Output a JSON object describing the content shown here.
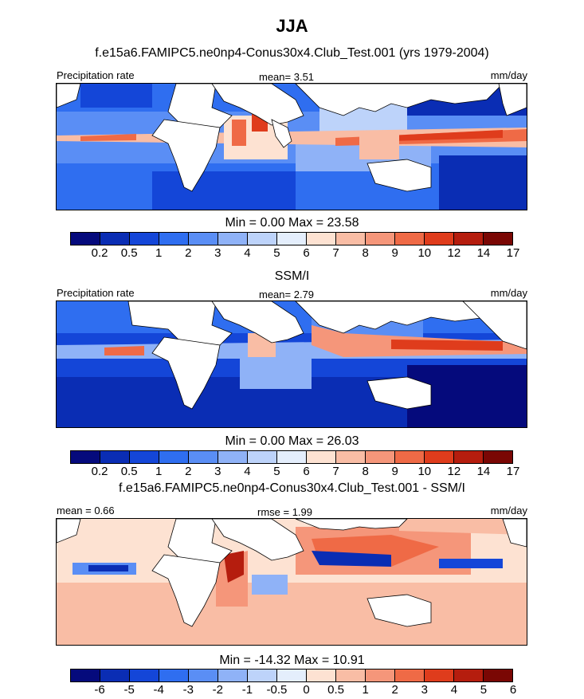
{
  "title": "JJA",
  "panels": [
    {
      "id": "model",
      "subtitle": "f.e15a6.FAMIPC5.ne0np4-Conus30x4.Club_Test.001 (yrs 1979-2004)",
      "left_label": "Precipitation rate",
      "center_label": "mean=   3.51",
      "right_label": "mm/day",
      "minmax": "Min =   0.00 Max =  23.58",
      "colorbar_labels": [
        "0.2",
        "0.5",
        "1",
        "2",
        "3",
        "4",
        "5",
        "6",
        "7",
        "8",
        "9",
        "10",
        "12",
        "14",
        "17"
      ]
    },
    {
      "id": "obs",
      "subtitle": "SSM/I",
      "left_label": "Precipitation rate",
      "center_label": "mean=   2.79",
      "right_label": "mm/day",
      "minmax": "Min =   0.00 Max =  26.03",
      "colorbar_labels": [
        "0.2",
        "0.5",
        "1",
        "2",
        "3",
        "4",
        "5",
        "6",
        "7",
        "8",
        "9",
        "10",
        "12",
        "14",
        "17"
      ]
    },
    {
      "id": "diff",
      "subtitle": "f.e15a6.FAMIPC5.ne0np4-Conus30x4.Club_Test.001 - SSM/I",
      "left_label": "mean =   0.66",
      "center_label": "rmse =   1.99",
      "right_label": "mm/day",
      "minmax": "Min = -14.32 Max =  10.91",
      "colorbar_labels": [
        "-6",
        "-5",
        "-4",
        "-3",
        "-2",
        "-1",
        "-0.5",
        "0",
        "0.5",
        "1",
        "2",
        "3",
        "4",
        "5",
        "6"
      ]
    }
  ],
  "colors": {
    "precip_scale": [
      "#050a7c",
      "#0a2db4",
      "#1446d8",
      "#2f6ef0",
      "#5a8ef5",
      "#8fb2f7",
      "#bdd3fa",
      "#e4eefc",
      "#fde2d2",
      "#f9bda5",
      "#f5967a",
      "#ef6a46",
      "#df3c1c",
      "#b51d0e",
      "#7a0704"
    ],
    "diff_scale": [
      "#050a7c",
      "#0a2db4",
      "#1446d8",
      "#2f6ef0",
      "#5a8ef5",
      "#8fb2f7",
      "#bdd3fa",
      "#e4eefc",
      "#fde2d2",
      "#f9bda5",
      "#f5967a",
      "#ef6a46",
      "#df3c1c",
      "#b51d0e",
      "#7a0704"
    ],
    "land": "#ffffff",
    "coast": "#000000"
  }
}
